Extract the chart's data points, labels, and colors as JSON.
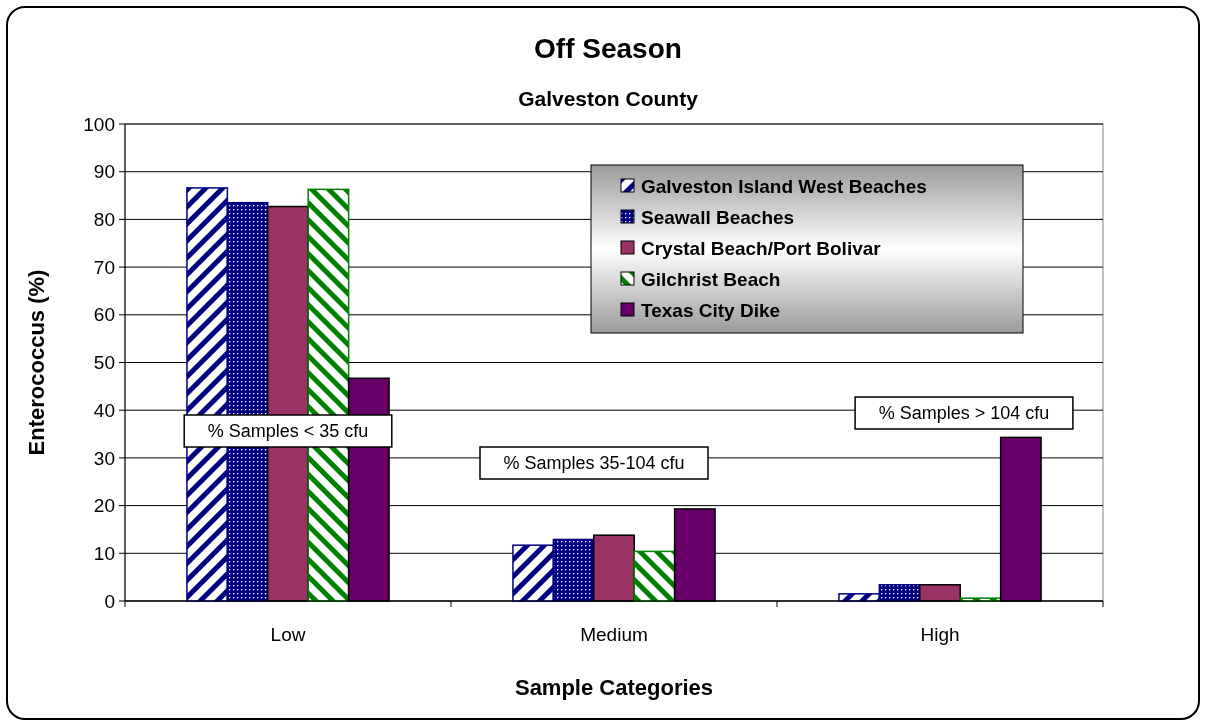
{
  "chart_data": {
    "type": "bar",
    "title": "Off Season",
    "subtitle": "Galveston County",
    "xlabel": "Sample Categories",
    "ylabel": "Enterococcus (%)",
    "categories": [
      "Low",
      "Medium",
      "High"
    ],
    "series": [
      {
        "name": "Galveston Island West Beaches",
        "color": "#000080",
        "values": [
          86.6,
          11.7,
          1.5
        ]
      },
      {
        "name": "Seawall Beaches",
        "color": "#000080",
        "values": [
          83.5,
          12.9,
          3.4
        ]
      },
      {
        "name": "Crystal Beach/Port Bolivar",
        "color": "#993366",
        "values": [
          82.7,
          13.8,
          3.4
        ]
      },
      {
        "name": "Gilchrist Beach",
        "color": "#008000",
        "values": [
          86.3,
          10.4,
          0.6
        ]
      },
      {
        "name": "Texas City Dike",
        "color": "#660066",
        "values": [
          46.7,
          19.3,
          34.3
        ]
      }
    ],
    "ylim": [
      0,
      100
    ],
    "yticks": [
      0,
      10,
      20,
      30,
      40,
      50,
      60,
      70,
      80,
      90,
      100
    ],
    "grid": "y",
    "legend": "top right",
    "annotations": [
      "% Samples < 35 cfu",
      "% Samples 35-104 cfu",
      "% Samples > 104 cfu"
    ]
  }
}
